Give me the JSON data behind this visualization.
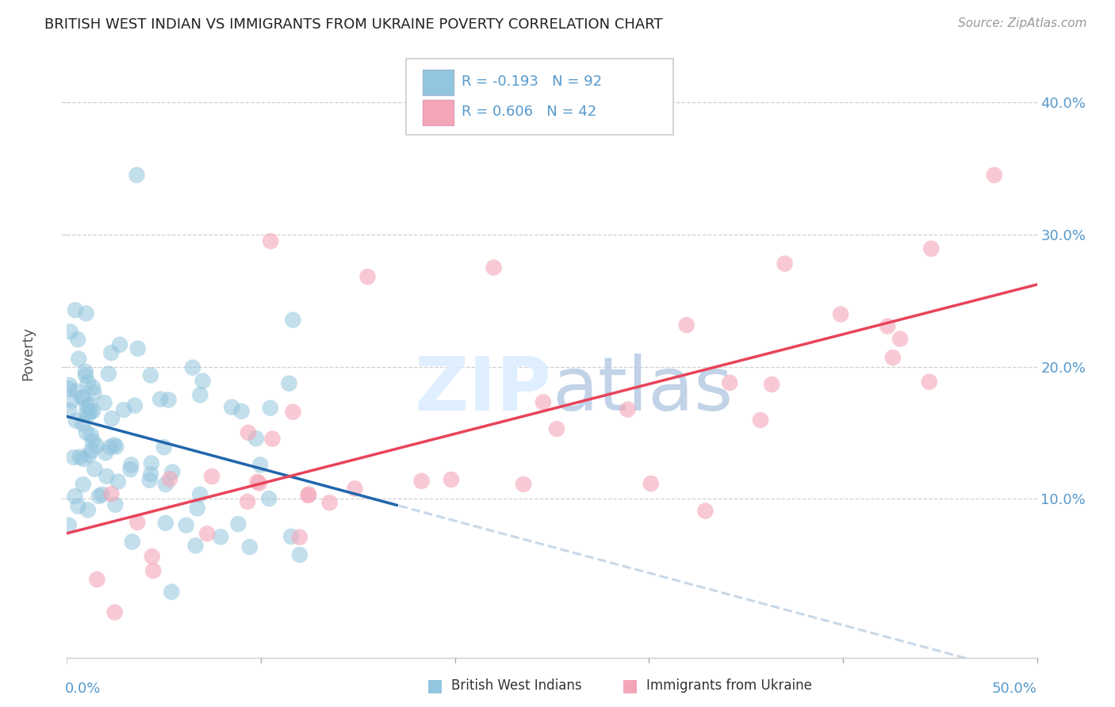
{
  "title": "BRITISH WEST INDIAN VS IMMIGRANTS FROM UKRAINE POVERTY CORRELATION CHART",
  "source": "Source: ZipAtlas.com",
  "ylabel": "Poverty",
  "ytick_values": [
    0.1,
    0.2,
    0.3,
    0.4
  ],
  "xlim": [
    0.0,
    0.5
  ],
  "ylim": [
    -0.02,
    0.44
  ],
  "legend_r1": "-0.193",
  "legend_n1": "92",
  "legend_r2": "0.606",
  "legend_n2": "42",
  "color_blue": "#92c5de",
  "color_pink": "#f4a6b8",
  "trendline_blue": "#2166ac",
  "trendline_pink": "#e8435a",
  "trendline_gray": "#c8d8e8",
  "watermark_color": "#ddeeff",
  "legend_label1": "British West Indians",
  "legend_label2": "Immigrants from Ukraine",
  "background": "#ffffff",
  "grid_color": "#d0d0d0",
  "axis_label_color": "#5599cc",
  "title_fontsize": 13,
  "source_fontsize": 11
}
